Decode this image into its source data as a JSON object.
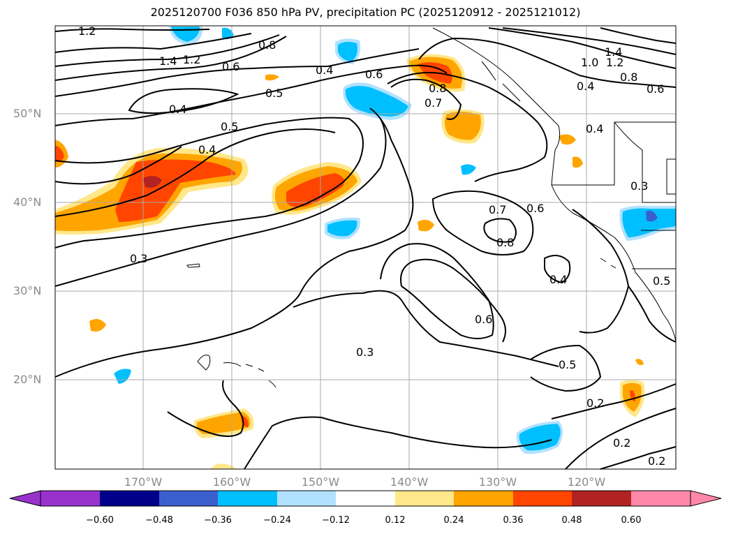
{
  "title": "2025120700 F036 850 hPa PV, precipitation PC (2025120912 - 2025121012)",
  "lat_labels": [
    "50°N",
    "40°N",
    "30°N",
    "20°N"
  ],
  "lon_labels": [
    "170°W",
    "160°W",
    "150°W",
    "140°W",
    "130°W",
    "120°W"
  ],
  "colorbar": {
    "ticks": [
      "−0.60",
      "−0.48",
      "−0.36",
      "−0.24",
      "−0.12",
      "0.12",
      "0.24",
      "0.36",
      "0.48",
      "0.60"
    ],
    "colors": [
      "#9932cc",
      "#00008b",
      "#3a5fcd",
      "#00bfff",
      "#b0e2ff",
      "#ffffff",
      "#ffe78a",
      "#ffa500",
      "#ff4500",
      "#b22222",
      "#ff88aa"
    ]
  },
  "contour_labels": [
    {
      "text": "1.2"
    },
    {
      "text": "1.4"
    },
    {
      "text": "1.2"
    },
    {
      "text": "0.6"
    },
    {
      "text": "0.8"
    },
    {
      "text": "0.4"
    },
    {
      "text": "0.5"
    },
    {
      "text": "0.4"
    },
    {
      "text": "0.5"
    },
    {
      "text": "0.4"
    },
    {
      "text": "0.6"
    },
    {
      "text": "0.7"
    },
    {
      "text": "0.8"
    },
    {
      "text": "1.4"
    },
    {
      "text": "1.2"
    },
    {
      "text": "1.0"
    },
    {
      "text": "0.8"
    },
    {
      "text": "0.6"
    },
    {
      "text": "0.4"
    },
    {
      "text": "0.4"
    },
    {
      "text": "0.3"
    },
    {
      "text": "0.7"
    },
    {
      "text": "0.6"
    },
    {
      "text": "0.8"
    },
    {
      "text": "0.3"
    },
    {
      "text": "0.4"
    },
    {
      "text": "0.6"
    },
    {
      "text": "0.3"
    },
    {
      "text": "0.5"
    },
    {
      "text": "0.5"
    },
    {
      "text": "0.2"
    },
    {
      "text": "0.2"
    },
    {
      "text": "0.2"
    }
  ]
}
